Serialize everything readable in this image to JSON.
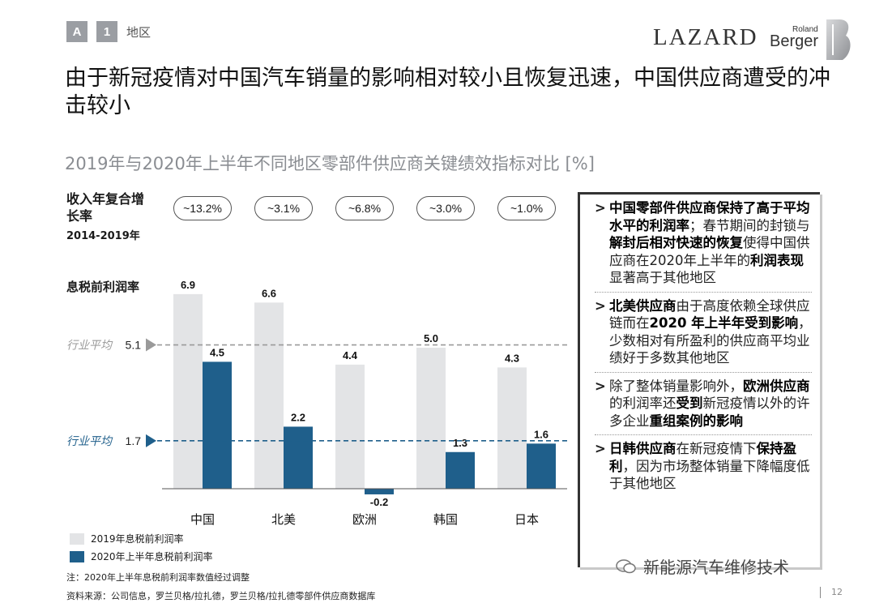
{
  "header": {
    "section_box_a": "A",
    "section_box_1": "1",
    "section_label": "地区",
    "logo_lazard": "LAZARD",
    "logo_roland": "Roland",
    "logo_berger": "Berger"
  },
  "title": "由于新冠疫情对中国汽车销量的影响相对较小且恢复迅速，中国供应商遭受的冲击较小",
  "subtitle": "2019年与2020年上半年不同地区零部件供应商关键绩效指标对比 [%]",
  "cagr": {
    "label": "收入年复合增长率",
    "years": "2014-2019年",
    "values": [
      "~13.2%",
      "~3.1%",
      "~6.8%",
      "~3.0%",
      "~1.0%"
    ]
  },
  "ebit_label": "息税前利润率",
  "chart_data": {
    "type": "bar",
    "categories": [
      "中国",
      "北美",
      "欧洲",
      "韩国",
      "日本"
    ],
    "series": [
      {
        "name": "2019年息税前利润率",
        "values": [
          6.9,
          6.6,
          4.4,
          5.0,
          4.3
        ],
        "color": "#e3e4e6"
      },
      {
        "name": "2020年上半年息税前利润率",
        "values": [
          4.5,
          2.2,
          -0.2,
          1.3,
          1.6
        ],
        "color": "#1f5f8b"
      }
    ],
    "data_labels": [
      [
        "6.9",
        "6.6",
        "4.4",
        "5.0",
        "4.3"
      ],
      [
        "4.5",
        "2.2",
        "-0.2",
        "1.3",
        "1.6"
      ]
    ],
    "ylim": [
      -0.5,
      7.5
    ],
    "reference_lines": [
      {
        "label": "行业平均",
        "value": 5.1,
        "value_label": "5.1",
        "color": "#9a9a9a",
        "style": "dashed"
      },
      {
        "label": "行业平均",
        "value": 1.7,
        "value_label": "1.7",
        "color": "#1f5f8b",
        "style": "dashed"
      }
    ],
    "legend": [
      "2019年息税前利润率",
      "2020年上半年息税前利润率"
    ],
    "legend_position": "bottom-left"
  },
  "note": "注：2020年上半年息税前利润率数值经过调整",
  "source": "资料来源：公司信息，罗兰贝格/拉扎德，罗兰贝格/拉扎德零部件供应商数据库",
  "page_number": "12",
  "panel": {
    "b1": [
      "中国零部件供应商保持了高于平均水平的利润率",
      "；春节期间的封锁与",
      "解封后相对快速的恢复",
      "使得中国供应商在2020年上半年的",
      "利润表现",
      "显著高于其他地区"
    ],
    "b2": [
      "北美供应商",
      "由于高度依赖全球供应链而在",
      "2020 年上半年受到影响",
      "，少数相对有所盈利的供应商平均业绩好于多数其他地区"
    ],
    "b3": [
      "除了整体销量影响外，",
      "欧洲供应商",
      "的利润率还",
      "受到",
      "新冠疫情以外的许多企业",
      "重组案例的影响"
    ],
    "b4": [
      "日韩供应商",
      "在新冠疫情下",
      "保持盈利",
      "，因为市场整体销量下降幅度低于其他地区"
    ]
  },
  "watermark": "新能源汽车维修技术"
}
